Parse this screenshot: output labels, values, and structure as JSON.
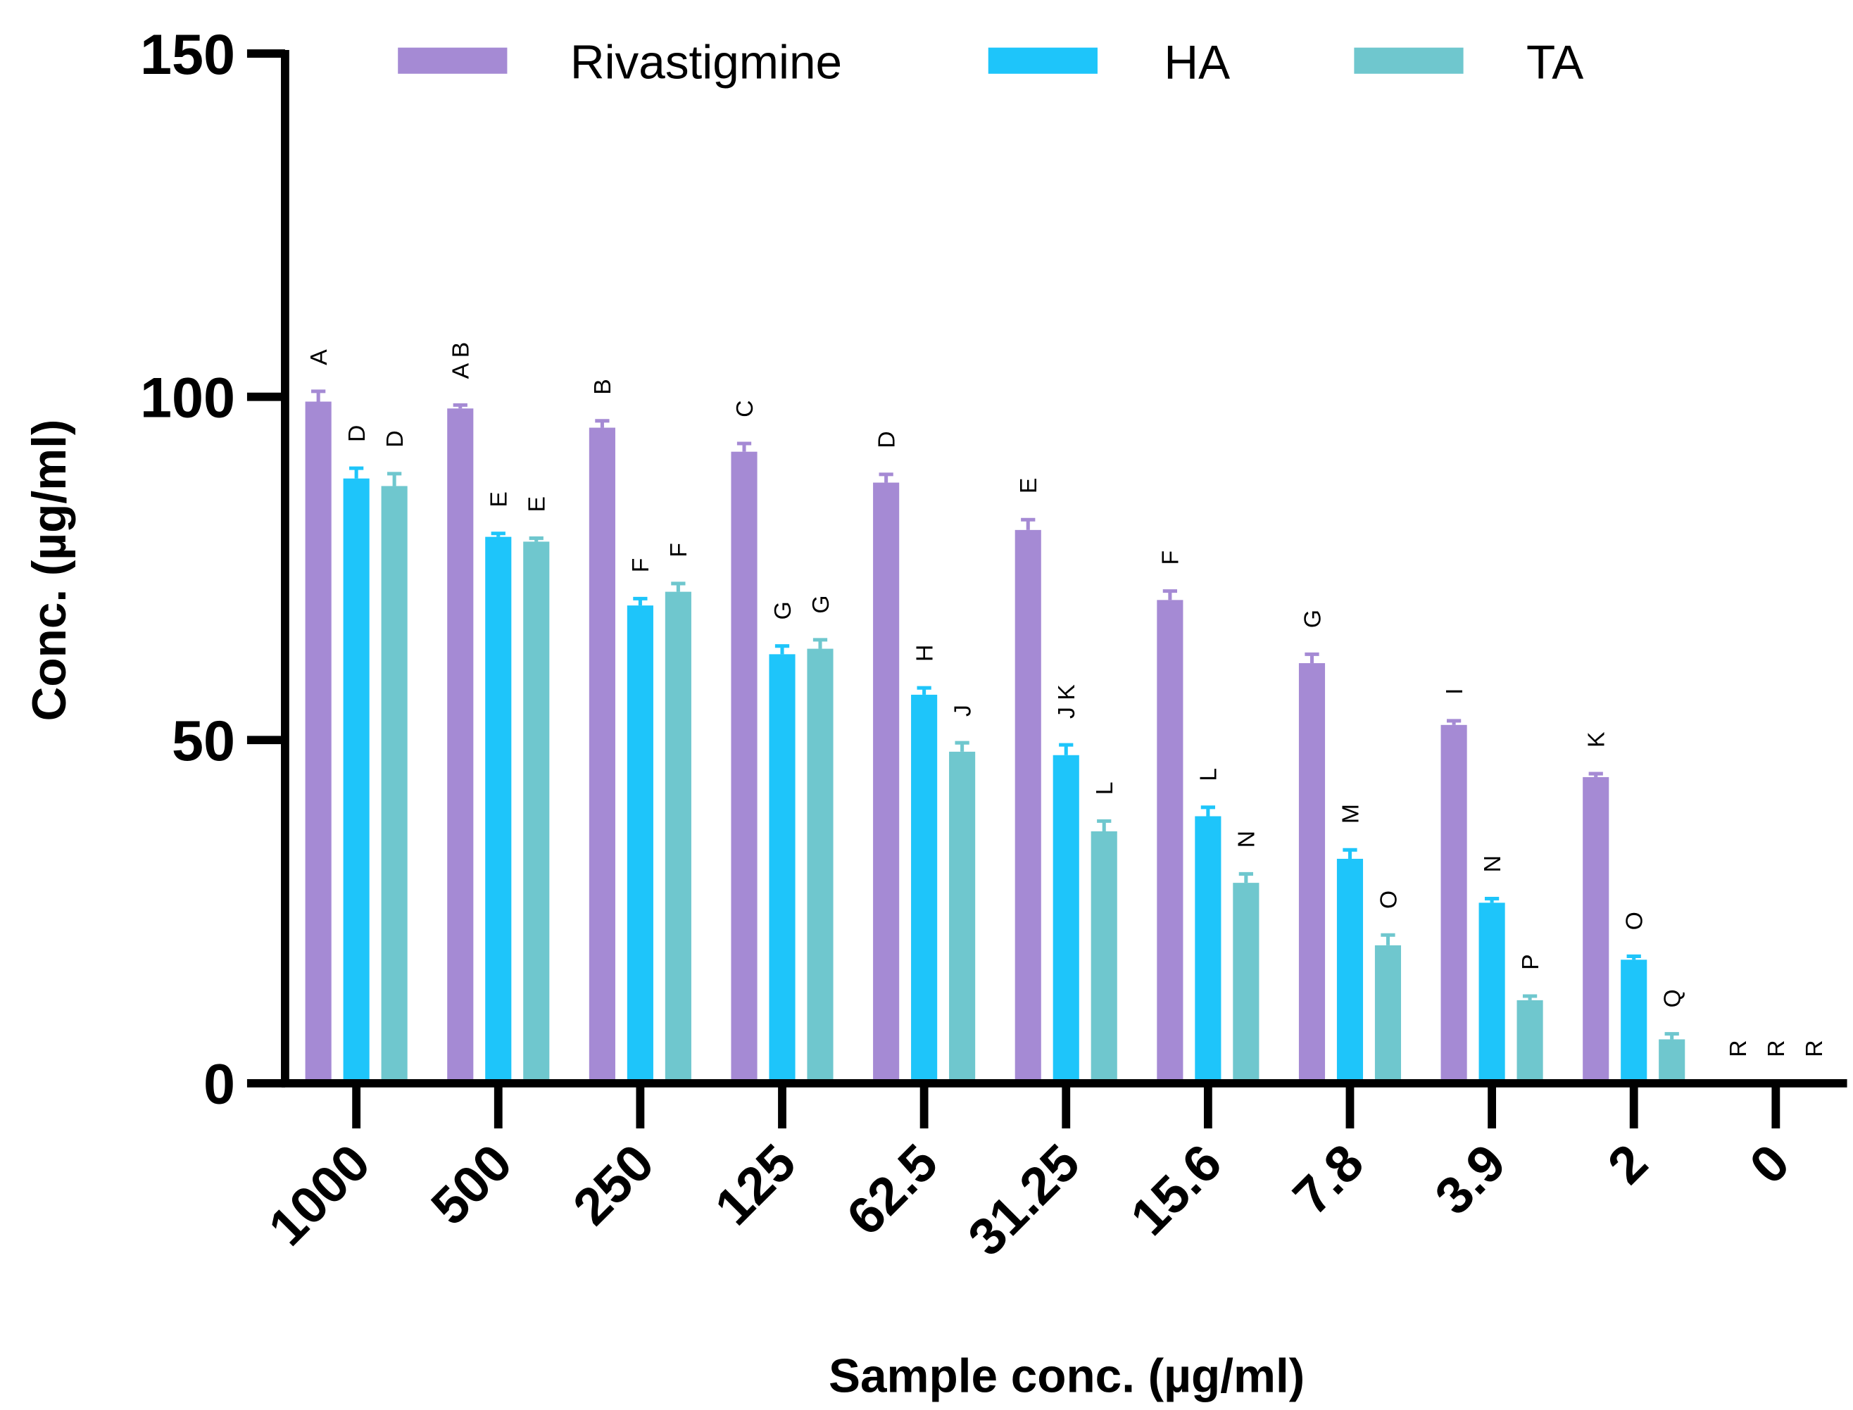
{
  "chart_data": {
    "type": "bar",
    "title": "",
    "xlabel": "Sample conc. (µg/ml)",
    "ylabel": "Conc. (µg/ml)",
    "ylim": [
      0,
      150
    ],
    "yticks": [
      "0",
      "50",
      "100",
      "150"
    ],
    "ytick_values": [
      0,
      50,
      100,
      150
    ],
    "grid": false,
    "legend_position": "top",
    "categories": [
      "1000",
      "500",
      "250",
      "125",
      "62.5",
      "31.25",
      "15.6",
      "7.8",
      "3.9",
      "2",
      "0"
    ],
    "series": [
      {
        "name": "Rivastigmine",
        "color": "#A58AD4",
        "values": [
          99.3,
          98.3,
          95.5,
          92.0,
          87.5,
          80.6,
          70.4,
          61.2,
          52.2,
          44.6,
          0
        ],
        "errors": [
          1.5,
          0.5,
          1.0,
          1.2,
          1.2,
          1.5,
          1.3,
          1.3,
          0.6,
          0.5,
          0
        ],
        "letters": [
          "A",
          "AB",
          "B",
          "C",
          "D",
          "E",
          "F",
          "G",
          "I",
          "K",
          "R"
        ]
      },
      {
        "name": "HA",
        "color": "#1EC5FA",
        "values": [
          88.1,
          79.6,
          69.6,
          62.5,
          56.6,
          47.8,
          38.9,
          32.7,
          26.3,
          18.0,
          0
        ],
        "errors": [
          1.5,
          0.5,
          1.0,
          1.2,
          1.0,
          1.5,
          1.3,
          1.3,
          0.6,
          0.5,
          0
        ],
        "letters": [
          "D",
          "E",
          "F",
          "G",
          "H",
          "JK",
          "L",
          "M",
          "N",
          "O",
          "R"
        ]
      },
      {
        "name": "TA",
        "color": "#6FC7CE",
        "values": [
          87.0,
          78.9,
          71.6,
          63.3,
          48.3,
          36.7,
          29.2,
          20.1,
          12.1,
          6.4,
          0
        ],
        "errors": [
          1.8,
          0.5,
          1.2,
          1.3,
          1.3,
          1.5,
          1.3,
          1.5,
          0.6,
          0.8,
          0
        ],
        "letters": [
          "D",
          "E",
          "F",
          "G",
          "J",
          "L",
          "N",
          "O",
          "P",
          "Q",
          "R"
        ]
      }
    ]
  }
}
